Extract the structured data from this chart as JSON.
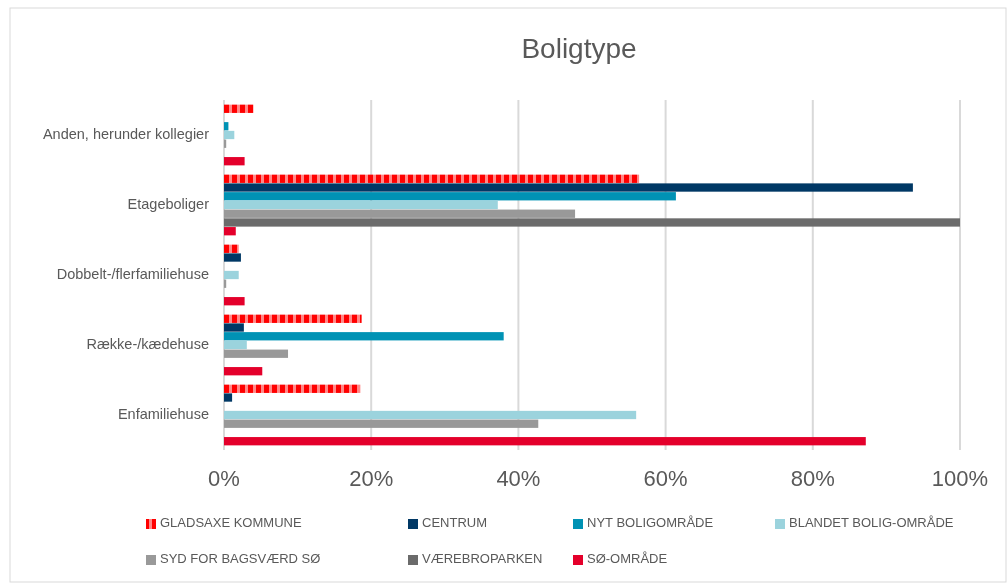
{
  "chart_data": {
    "type": "bar",
    "orientation": "horizontal",
    "title": "Boligtype",
    "categories": [
      "Anden, herunder kollegier",
      "Etageboliger",
      "Dobbelt-/flerfamiliehuse",
      "Række-/kædehuse",
      "Enfamiliehuse"
    ],
    "series": [
      {
        "name": "GLADSAXE KOMMUNE",
        "color": "#ff0000",
        "values": [
          4.0,
          56.4,
          2.0,
          18.7,
          18.5
        ]
      },
      {
        "name": "CENTRUM",
        "color": "#003865",
        "values": [
          0,
          93.6,
          2.3,
          2.7,
          1.1
        ]
      },
      {
        "name": "NYT BOLIGOMRÅDE",
        "color": "#0092b4",
        "values": [
          0.6,
          61.4,
          0,
          38.0,
          0
        ]
      },
      {
        "name": "BLANDET BOLIG-OMRÅDE",
        "color": "#9bd3dd",
        "values": [
          1.4,
          37.2,
          2.0,
          3.1,
          56.0
        ]
      },
      {
        "name": "SYD FOR BAGSVÆRD SØ",
        "color": "#999999",
        "values": [
          0.3,
          47.7,
          0.3,
          8.7,
          42.7
        ]
      },
      {
        "name": "VÆREBROPARKEN",
        "color": "#6b6b6b",
        "values": [
          0,
          100,
          0,
          0,
          0
        ]
      },
      {
        "name": "SØ-OMRÅDE",
        "color": "#e4002b",
        "values": [
          2.8,
          1.6,
          2.8,
          5.2,
          87.2
        ]
      }
    ],
    "xlim": [
      0,
      100
    ],
    "xticks": [
      {
        "value": 0,
        "label": "0%"
      },
      {
        "value": 20,
        "label": "20%"
      },
      {
        "value": 40,
        "label": "40%"
      },
      {
        "value": 60,
        "label": "60%"
      },
      {
        "value": 80,
        "label": "80%"
      },
      {
        "value": 100,
        "label": "100%"
      }
    ],
    "grid": "x",
    "legend": "bottom"
  }
}
